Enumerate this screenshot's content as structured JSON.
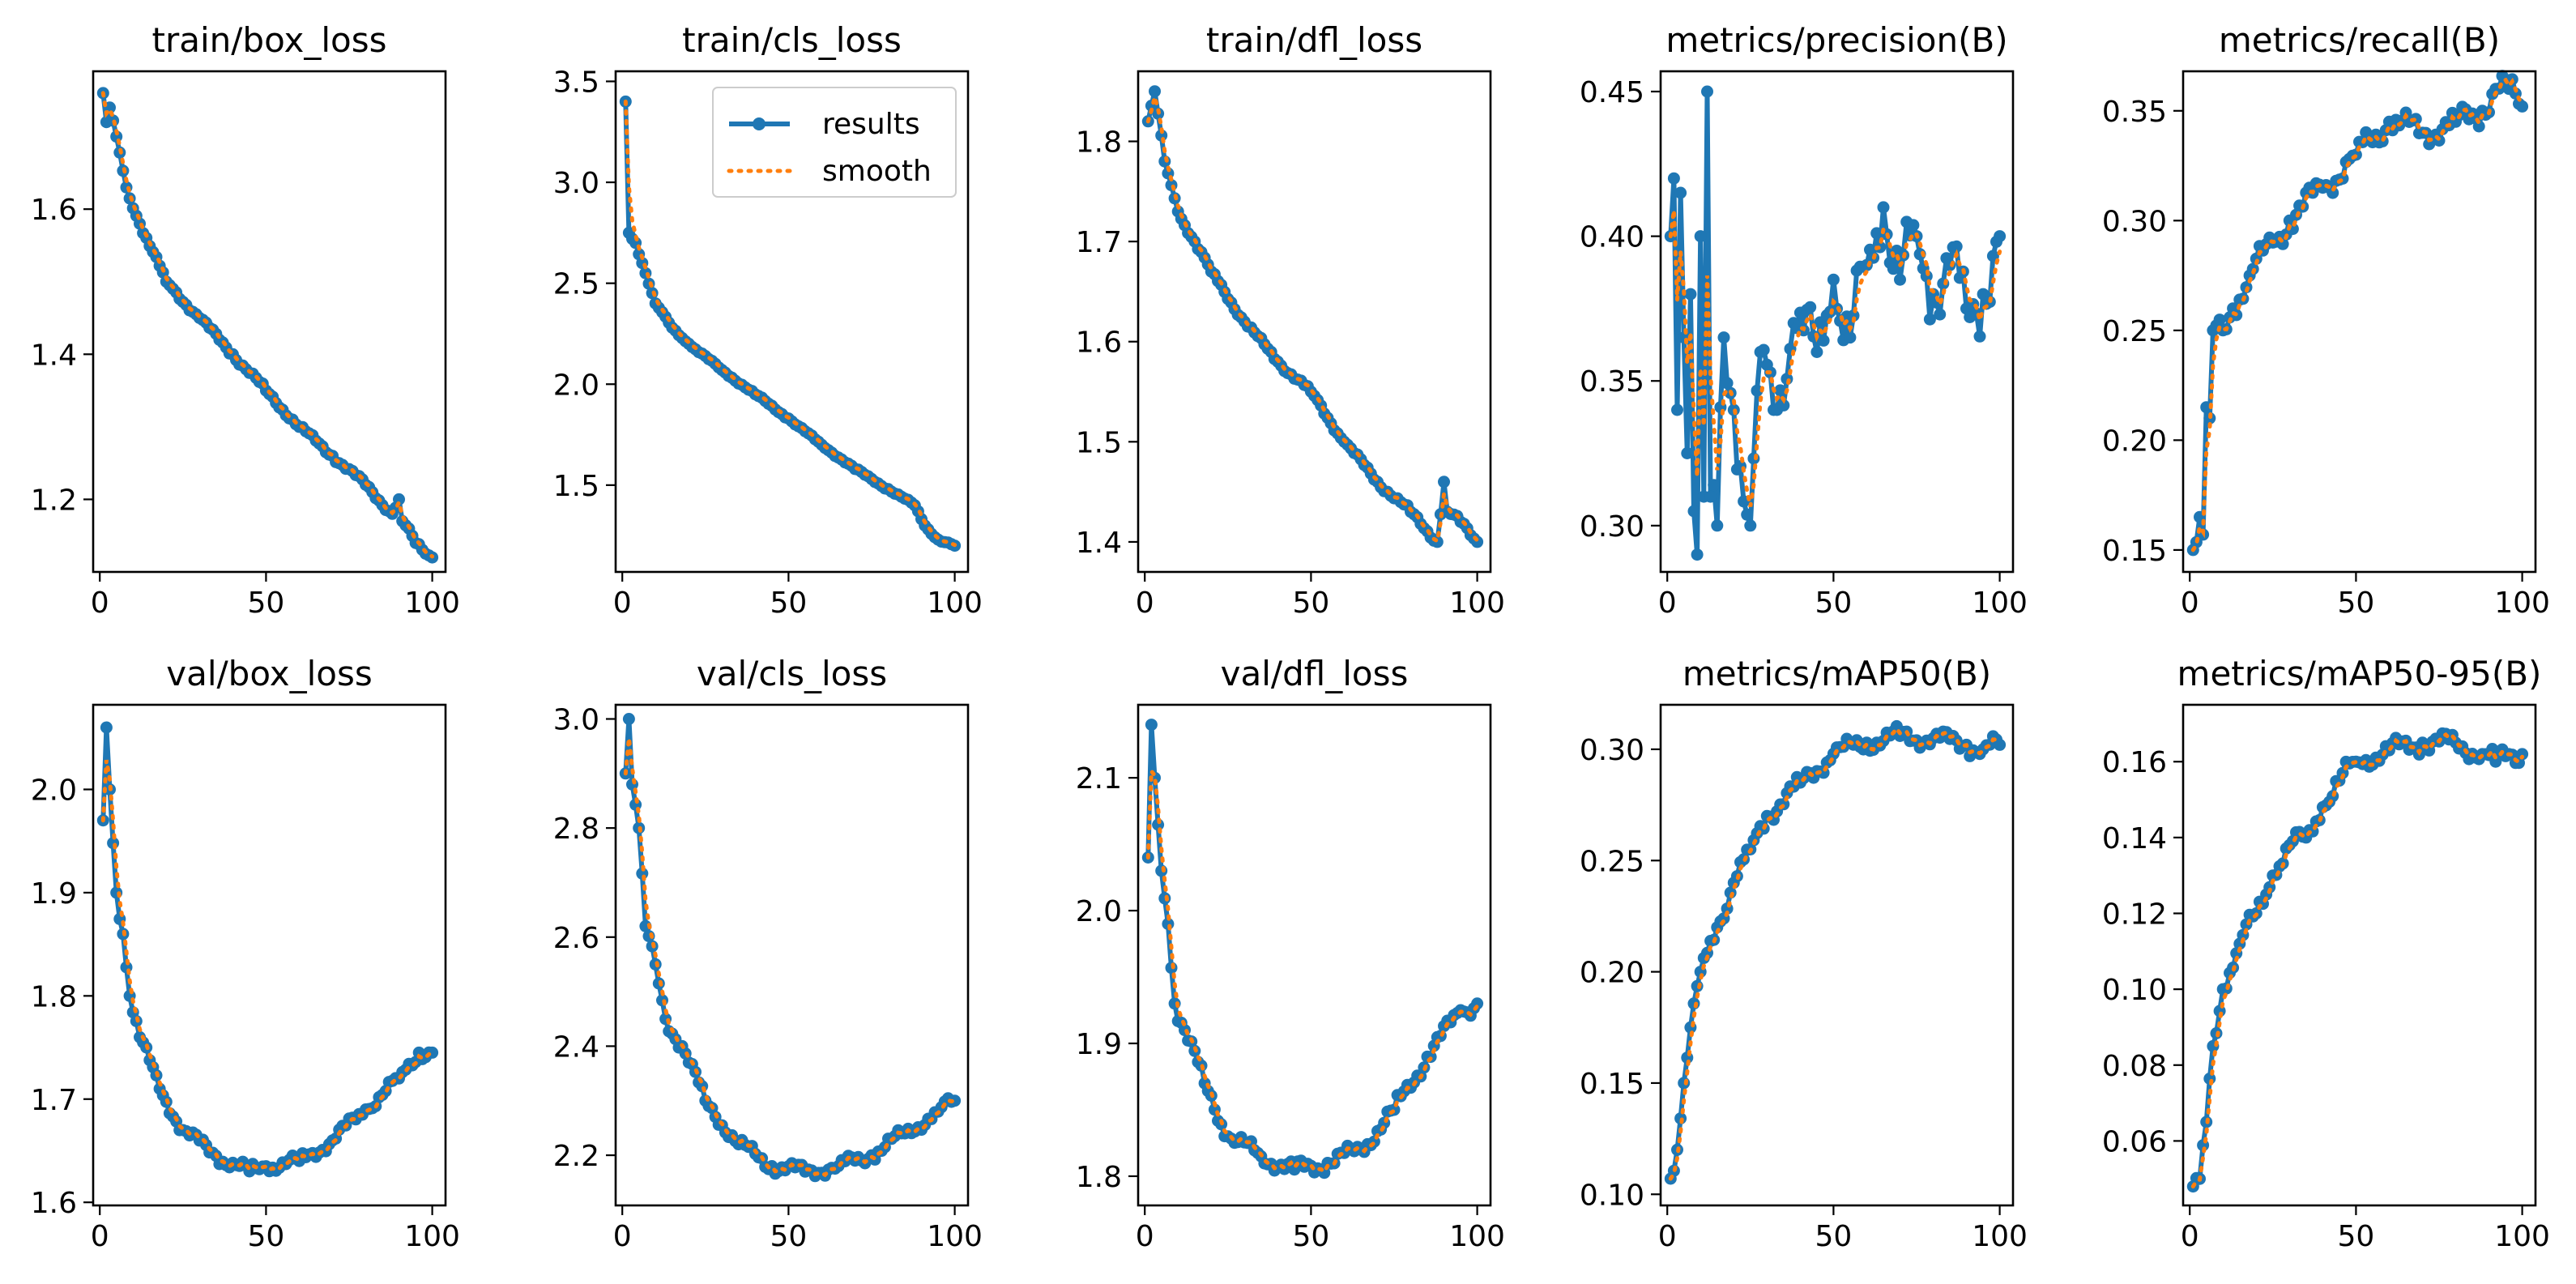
{
  "chart_data": [
    {
      "type": "line",
      "title": "train/box_loss",
      "xlim": [
        -2,
        104
      ],
      "ylim": [
        1.1,
        1.79
      ],
      "xticks": [
        0,
        50,
        100
      ],
      "yticks": [
        1.2,
        1.4,
        1.6
      ],
      "anchors": [
        [
          1,
          1.76
        ],
        [
          2,
          1.72
        ],
        [
          3,
          1.74
        ],
        [
          5,
          1.7
        ],
        [
          8,
          1.63
        ],
        [
          12,
          1.58
        ],
        [
          20,
          1.5
        ],
        [
          30,
          1.45
        ],
        [
          40,
          1.4
        ],
        [
          50,
          1.35
        ],
        [
          60,
          1.3
        ],
        [
          70,
          1.26
        ],
        [
          80,
          1.22
        ],
        [
          88,
          1.18
        ],
        [
          90,
          1.2
        ],
        [
          91,
          1.17
        ],
        [
          95,
          1.14
        ],
        [
          100,
          1.12
        ]
      ],
      "noise": 0.004,
      "smooth_lag": 0.3
    },
    {
      "type": "line",
      "title": "train/cls_loss",
      "xlim": [
        -2,
        104
      ],
      "ylim": [
        1.07,
        3.55
      ],
      "xticks": [
        0,
        50,
        100
      ],
      "yticks": [
        1.5,
        2.0,
        2.5,
        3.0,
        3.5
      ],
      "anchors": [
        [
          1,
          3.4
        ],
        [
          2,
          2.75
        ],
        [
          4,
          2.7
        ],
        [
          6,
          2.6
        ],
        [
          10,
          2.4
        ],
        [
          15,
          2.28
        ],
        [
          20,
          2.2
        ],
        [
          30,
          2.07
        ],
        [
          40,
          1.95
        ],
        [
          50,
          1.83
        ],
        [
          60,
          1.7
        ],
        [
          70,
          1.58
        ],
        [
          80,
          1.48
        ],
        [
          88,
          1.4
        ],
        [
          91,
          1.3
        ],
        [
          95,
          1.23
        ],
        [
          100,
          1.2
        ]
      ],
      "noise": 0.006,
      "smooth_lag": 0.35
    },
    {
      "type": "line",
      "title": "train/dfl_loss",
      "xlim": [
        -2,
        104
      ],
      "ylim": [
        1.37,
        1.87
      ],
      "xticks": [
        0,
        50,
        100
      ],
      "yticks": [
        1.4,
        1.5,
        1.6,
        1.7,
        1.8
      ],
      "anchors": [
        [
          1,
          1.82
        ],
        [
          3,
          1.85
        ],
        [
          6,
          1.78
        ],
        [
          10,
          1.73
        ],
        [
          15,
          1.7
        ],
        [
          20,
          1.67
        ],
        [
          30,
          1.62
        ],
        [
          40,
          1.58
        ],
        [
          50,
          1.55
        ],
        [
          60,
          1.5
        ],
        [
          70,
          1.46
        ],
        [
          80,
          1.43
        ],
        [
          88,
          1.4
        ],
        [
          90,
          1.46
        ],
        [
          91,
          1.43
        ],
        [
          95,
          1.42
        ],
        [
          100,
          1.4
        ]
      ],
      "noise": 0.003,
      "smooth_lag": 0.3
    },
    {
      "type": "line",
      "title": "metrics/precision(B)",
      "xlim": [
        -2,
        104
      ],
      "ylim": [
        0.284,
        0.457
      ],
      "xticks": [
        0,
        50,
        100
      ],
      "yticks": [
        0.3,
        0.35,
        0.4,
        0.45
      ],
      "anchors": [
        [
          1,
          0.4
        ],
        [
          2,
          0.42
        ],
        [
          3,
          0.34
        ],
        [
          4,
          0.415
        ],
        [
          5,
          0.365
        ],
        [
          6,
          0.325
        ],
        [
          7,
          0.38
        ],
        [
          8,
          0.305
        ],
        [
          9,
          0.29
        ],
        [
          10,
          0.4
        ],
        [
          11,
          0.31
        ],
        [
          12,
          0.45
        ],
        [
          13,
          0.31
        ],
        [
          15,
          0.3
        ],
        [
          17,
          0.365
        ],
        [
          20,
          0.34
        ],
        [
          25,
          0.3
        ],
        [
          28,
          0.36
        ],
        [
          32,
          0.34
        ],
        [
          38,
          0.37
        ],
        [
          45,
          0.36
        ],
        [
          50,
          0.385
        ],
        [
          55,
          0.365
        ],
        [
          60,
          0.39
        ],
        [
          65,
          0.41
        ],
        [
          70,
          0.385
        ],
        [
          75,
          0.4
        ],
        [
          80,
          0.38
        ],
        [
          85,
          0.39
        ],
        [
          90,
          0.375
        ],
        [
          95,
          0.38
        ],
        [
          100,
          0.4
        ]
      ],
      "noise": 0.012,
      "smooth_lag": 0.55
    },
    {
      "type": "line",
      "title": "metrics/recall(B)",
      "xlim": [
        -2,
        104
      ],
      "ylim": [
        0.14,
        0.368
      ],
      "xticks": [
        0,
        50,
        100
      ],
      "yticks": [
        0.15,
        0.2,
        0.25,
        0.3,
        0.35
      ],
      "anchors": [
        [
          1,
          0.15
        ],
        [
          3,
          0.165
        ],
        [
          4,
          0.157
        ],
        [
          5,
          0.215
        ],
        [
          6,
          0.21
        ],
        [
          7,
          0.25
        ],
        [
          10,
          0.25
        ],
        [
          13,
          0.26
        ],
        [
          18,
          0.275
        ],
        [
          25,
          0.29
        ],
        [
          30,
          0.3
        ],
        [
          40,
          0.315
        ],
        [
          50,
          0.33
        ],
        [
          60,
          0.345
        ],
        [
          70,
          0.34
        ],
        [
          80,
          0.345
        ],
        [
          88,
          0.35
        ],
        [
          92,
          0.36
        ],
        [
          96,
          0.36
        ],
        [
          100,
          0.352
        ]
      ],
      "noise": 0.006,
      "smooth_lag": 0.35
    },
    {
      "type": "line",
      "title": "val/box_loss",
      "xlim": [
        -2,
        104
      ],
      "ylim": [
        1.597,
        2.082
      ],
      "xticks": [
        0,
        50,
        100
      ],
      "yticks": [
        1.6,
        1.7,
        1.8,
        1.9,
        2.0
      ],
      "anchors": [
        [
          1,
          1.97
        ],
        [
          2,
          2.06
        ],
        [
          3,
          2.0
        ],
        [
          5,
          1.9
        ],
        [
          7,
          1.86
        ],
        [
          9,
          1.8
        ],
        [
          12,
          1.76
        ],
        [
          18,
          1.71
        ],
        [
          25,
          1.67
        ],
        [
          35,
          1.645
        ],
        [
          45,
          1.63
        ],
        [
          50,
          1.635
        ],
        [
          60,
          1.64
        ],
        [
          70,
          1.66
        ],
        [
          80,
          1.69
        ],
        [
          90,
          1.72
        ],
        [
          96,
          1.745
        ],
        [
          100,
          1.745
        ]
      ],
      "noise": 0.006,
      "smooth_lag": 0.35
    },
    {
      "type": "line",
      "title": "val/cls_loss",
      "xlim": [
        -2,
        104
      ],
      "ylim": [
        2.108,
        3.026
      ],
      "xticks": [
        0,
        50,
        100
      ],
      "yticks": [
        2.2,
        2.4,
        2.6,
        2.8,
        3.0
      ],
      "anchors": [
        [
          1,
          2.9
        ],
        [
          2,
          3.0
        ],
        [
          3,
          2.88
        ],
        [
          5,
          2.8
        ],
        [
          7,
          2.62
        ],
        [
          10,
          2.55
        ],
        [
          13,
          2.45
        ],
        [
          18,
          2.4
        ],
        [
          25,
          2.3
        ],
        [
          35,
          2.22
        ],
        [
          45,
          2.18
        ],
        [
          55,
          2.17
        ],
        [
          65,
          2.18
        ],
        [
          75,
          2.2
        ],
        [
          85,
          2.24
        ],
        [
          95,
          2.28
        ],
        [
          100,
          2.3
        ]
      ],
      "noise": 0.012,
      "smooth_lag": 0.35
    },
    {
      "type": "line",
      "title": "val/dfl_loss",
      "xlim": [
        -2,
        104
      ],
      "ylim": [
        1.778,
        2.155
      ],
      "xticks": [
        0,
        50,
        100
      ],
      "yticks": [
        1.8,
        1.9,
        2.0,
        2.1
      ],
      "anchors": [
        [
          1,
          2.04
        ],
        [
          2,
          2.14
        ],
        [
          3,
          2.1
        ],
        [
          5,
          2.03
        ],
        [
          7,
          1.99
        ],
        [
          9,
          1.93
        ],
        [
          12,
          1.91
        ],
        [
          18,
          1.87
        ],
        [
          25,
          1.83
        ],
        [
          35,
          1.815
        ],
        [
          45,
          1.805
        ],
        [
          55,
          1.81
        ],
        [
          65,
          1.82
        ],
        [
          75,
          1.85
        ],
        [
          85,
          1.89
        ],
        [
          95,
          1.925
        ],
        [
          100,
          1.93
        ]
      ],
      "noise": 0.006,
      "smooth_lag": 0.35
    },
    {
      "type": "line",
      "title": "metrics/mAP50(B)",
      "xlim": [
        -2,
        104
      ],
      "ylim": [
        0.095,
        0.32
      ],
      "xticks": [
        0,
        50,
        100
      ],
      "yticks": [
        0.1,
        0.15,
        0.2,
        0.25,
        0.3
      ],
      "anchors": [
        [
          1,
          0.107
        ],
        [
          3,
          0.12
        ],
        [
          5,
          0.15
        ],
        [
          7,
          0.175
        ],
        [
          10,
          0.2
        ],
        [
          15,
          0.22
        ],
        [
          20,
          0.24
        ],
        [
          25,
          0.255
        ],
        [
          30,
          0.27
        ],
        [
          40,
          0.285
        ],
        [
          50,
          0.298
        ],
        [
          60,
          0.303
        ],
        [
          70,
          0.306
        ],
        [
          80,
          0.305
        ],
        [
          90,
          0.302
        ],
        [
          95,
          0.3
        ],
        [
          100,
          0.302
        ]
      ],
      "noise": 0.004,
      "smooth_lag": 0.35
    },
    {
      "type": "line",
      "title": "metrics/mAP50-95(B)",
      "xlim": [
        -2,
        104
      ],
      "ylim": [
        0.043,
        0.175
      ],
      "xticks": [
        0,
        50,
        100
      ],
      "yticks": [
        0.06,
        0.08,
        0.1,
        0.12,
        0.14,
        0.16
      ],
      "anchors": [
        [
          1,
          0.048
        ],
        [
          3,
          0.05
        ],
        [
          5,
          0.065
        ],
        [
          7,
          0.085
        ],
        [
          10,
          0.1
        ],
        [
          15,
          0.112
        ],
        [
          20,
          0.12
        ],
        [
          25,
          0.13
        ],
        [
          30,
          0.138
        ],
        [
          35,
          0.14
        ],
        [
          40,
          0.148
        ],
        [
          45,
          0.155
        ],
        [
          50,
          0.16
        ],
        [
          60,
          0.163
        ],
        [
          70,
          0.165
        ],
        [
          80,
          0.165
        ],
        [
          88,
          0.162
        ],
        [
          92,
          0.16
        ],
        [
          96,
          0.162
        ],
        [
          100,
          0.162
        ]
      ],
      "noise": 0.0025,
      "smooth_lag": 0.35
    }
  ],
  "legend": {
    "results_label": "results",
    "smooth_label": "smooth"
  },
  "colors": {
    "results": "#1f77b4",
    "smooth": "#ff7f0e"
  }
}
